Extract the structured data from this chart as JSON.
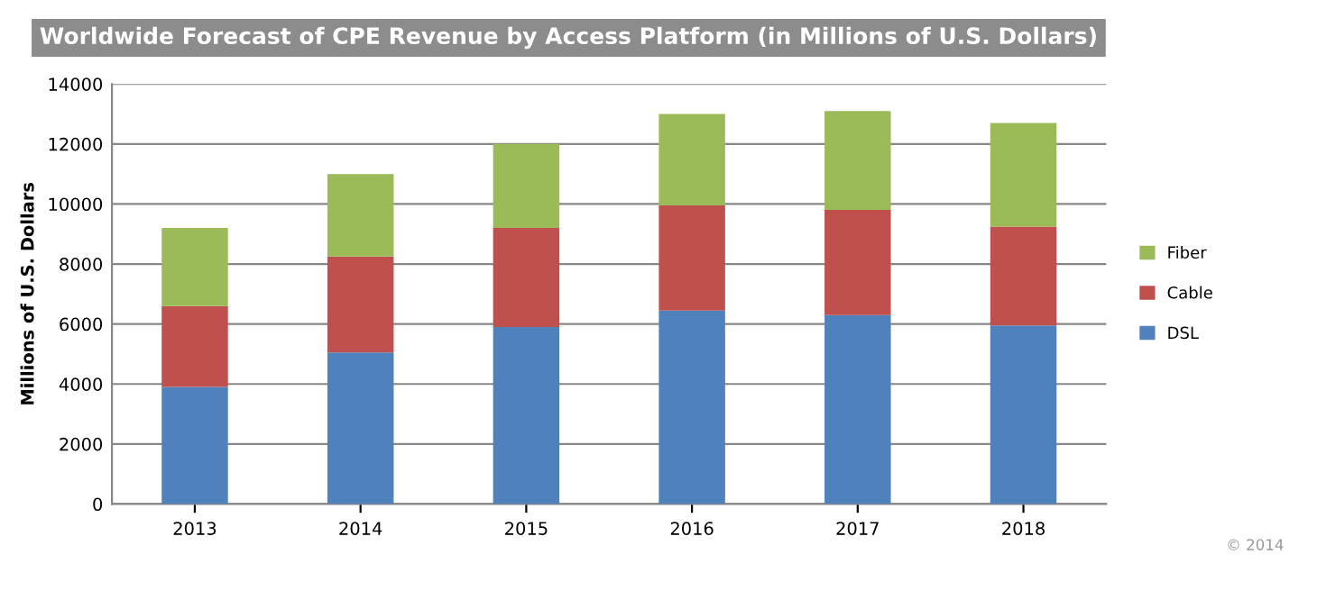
{
  "chart_data": {
    "type": "bar",
    "title": "Worldwide Forecast of CPE Revenue by Access Platform (in Millions of U.S. Dollars)",
    "ylabel": "Millions of U.S. Dollars",
    "categories": [
      "2013",
      "2014",
      "2015",
      "2016",
      "2017",
      "2018"
    ],
    "series": [
      {
        "name": "DSL",
        "color": "#4f81bd",
        "values": [
          3900,
          5050,
          5900,
          6450,
          6300,
          5950
        ]
      },
      {
        "name": "Cable",
        "color": "#c0504d",
        "values": [
          2700,
          3200,
          3300,
          3500,
          3500,
          3300
        ]
      },
      {
        "name": "Fiber",
        "color": "#9bbb59",
        "values": [
          2600,
          2750,
          2800,
          3050,
          3300,
          3450
        ]
      }
    ],
    "stacked": true,
    "ylim": [
      0,
      14000
    ],
    "yticks": [
      0,
      2000,
      4000,
      6000,
      8000,
      10000,
      12000,
      14000
    ],
    "grid": "y",
    "legend": "right",
    "annotations": [
      "© 2014"
    ]
  }
}
